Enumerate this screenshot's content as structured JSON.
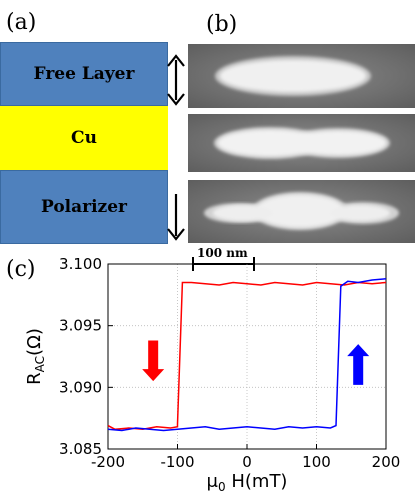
{
  "figure": {
    "panel_a": "(a)",
    "panel_b": "(b)",
    "panel_c": "(c)",
    "layers": {
      "free": "Free Layer",
      "cu": "Cu",
      "polarizer": "Polarizer"
    },
    "scale_bar": "100 nm",
    "colors": {
      "free_layer": "#4f81bd",
      "cu": "#ffff00",
      "polarizer": "#4f81bd"
    },
    "icons": {
      "free_arrow": "double-headed-vertical-arrow",
      "polarizer_arrow": "down-arrow"
    }
  },
  "chart_data": {
    "type": "line",
    "title": "",
    "xlabel": "μ0 H(mT)",
    "ylabel": "RAC(Ω)",
    "xlim": [
      -200,
      200
    ],
    "ylim": [
      3.085,
      3.1
    ],
    "xticks": [
      "-200",
      "-100",
      "0",
      "100",
      "200"
    ],
    "yticks": [
      "3.085",
      "3.090",
      "3.095",
      "3.100"
    ],
    "grid": true,
    "series": [
      {
        "color": "#ff0000",
        "x": [
          200,
          180,
          160,
          140,
          120,
          100,
          80,
          60,
          40,
          20,
          0,
          -20,
          -40,
          -60,
          -80,
          -93,
          -100,
          -100,
          -110,
          -130,
          -150,
          -170,
          -190,
          -200
        ],
        "y": [
          3.0985,
          3.0984,
          3.0985,
          3.0983,
          3.0984,
          3.0985,
          3.0983,
          3.0984,
          3.0985,
          3.0983,
          3.0984,
          3.0985,
          3.0983,
          3.0984,
          3.0985,
          3.0985,
          3.087,
          3.0868,
          3.0867,
          3.0868,
          3.0866,
          3.0867,
          3.0866,
          3.0869
        ]
      },
      {
        "color": "#0000ff",
        "x": [
          -200,
          -180,
          -160,
          -140,
          -120,
          -100,
          -80,
          -60,
          -40,
          -20,
          0,
          20,
          40,
          60,
          80,
          100,
          120,
          128,
          135,
          145,
          160,
          180,
          200
        ],
        "y": [
          3.0866,
          3.0865,
          3.0867,
          3.0866,
          3.0865,
          3.0866,
          3.0867,
          3.0868,
          3.0866,
          3.0867,
          3.0868,
          3.0867,
          3.0866,
          3.0868,
          3.0867,
          3.0868,
          3.0867,
          3.0869,
          3.0982,
          3.0986,
          3.0985,
          3.0987,
          3.0988
        ]
      }
    ],
    "annotations": [
      {
        "kind": "arrow",
        "direction": "down",
        "color": "#ff0000",
        "x": -135,
        "y_top": 3.0938,
        "y_bottom": 3.0905
      },
      {
        "kind": "arrow",
        "direction": "up",
        "color": "#0000ff",
        "x": 160,
        "y_top": 3.0935,
        "y_bottom": 3.0902
      }
    ]
  }
}
